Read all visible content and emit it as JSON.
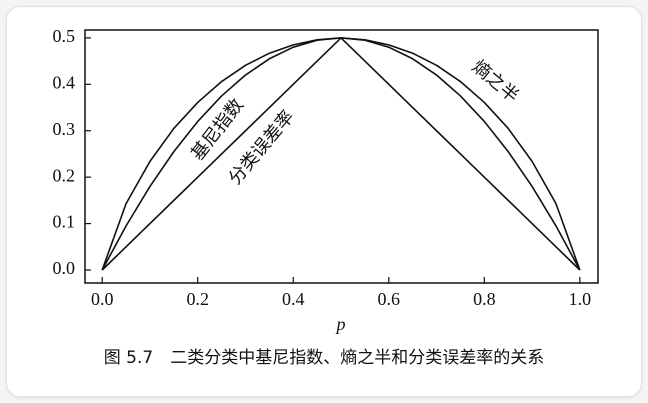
{
  "chart_data": {
    "type": "line",
    "caption": "图 5.7　二类分类中基尼指数、熵之半和分类误差率的关系",
    "x_label": "p",
    "x": [
      0,
      0.05,
      0.1,
      0.15,
      0.2,
      0.25,
      0.3,
      0.35,
      0.4,
      0.45,
      0.5,
      0.55,
      0.6,
      0.65,
      0.7,
      0.75,
      0.8,
      0.85,
      0.9,
      0.95,
      1
    ],
    "series": [
      {
        "name": "熵之半",
        "color": "#111111",
        "values": [
          0,
          0.143,
          0.234,
          0.305,
          0.361,
          0.406,
          0.441,
          0.467,
          0.485,
          0.496,
          0.5,
          0.496,
          0.485,
          0.467,
          0.441,
          0.406,
          0.361,
          0.305,
          0.234,
          0.143,
          0
        ]
      },
      {
        "name": "基尼指数",
        "color": "#111111",
        "values": [
          0,
          0.095,
          0.18,
          0.255,
          0.32,
          0.375,
          0.42,
          0.455,
          0.48,
          0.495,
          0.5,
          0.495,
          0.48,
          0.455,
          0.42,
          0.375,
          0.32,
          0.255,
          0.18,
          0.095,
          0
        ]
      },
      {
        "name": "分类误差率",
        "color": "#111111",
        "values": [
          0,
          0.05,
          0.1,
          0.15,
          0.2,
          0.25,
          0.3,
          0.35,
          0.4,
          0.45,
          0.5,
          0.45,
          0.4,
          0.35,
          0.3,
          0.25,
          0.2,
          0.15,
          0.1,
          0.05,
          0
        ]
      }
    ],
    "xlim": [
      -0.036,
      1.038
    ],
    "ylim": [
      -0.028,
      0.517
    ],
    "xticks": [
      {
        "value": 0,
        "label": "0.0"
      },
      0.2,
      0.4,
      0.6,
      0.8,
      {
        "value": 1,
        "label": "1.0"
      }
    ],
    "yticks": [
      {
        "value": 0,
        "label": "0.0"
      },
      0.1,
      0.2,
      0.3,
      0.4,
      0.5
    ],
    "grid": false
  }
}
